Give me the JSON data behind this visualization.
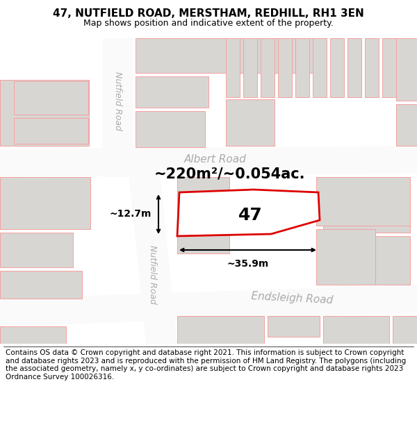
{
  "title": "47, NUTFIELD ROAD, MERSTHAM, REDHILL, RH1 3EN",
  "subtitle": "Map shows position and indicative extent of the property.",
  "footer": "Contains OS data © Crown copyright and database right 2021. This information is subject to Crown copyright and database rights 2023 and is reproduced with the permission of HM Land Registry. The polygons (including the associated geometry, namely x, y co-ordinates) are subject to Crown copyright and database rights 2023 Ordnance Survey 100026316.",
  "map_bg": "#f0eeeb",
  "road_fill": "#fafafa",
  "bld_fill": "#d8d6d3",
  "bld_edge_pink": "#f5a0a0",
  "red": "#dd0000",
  "gray_text": "#aaaaaa",
  "title_fontsize": 11,
  "subtitle_fontsize": 9,
  "footer_fontsize": 7.5,
  "area_label": "~220m²/~0.054ac.",
  "width_label": "~35.9m",
  "height_label": "~12.7m",
  "road_albert": "Albert Road",
  "road_endsleigh": "Endsleigh Road",
  "road_nutfield_top": "Nutfield Road",
  "road_nutfield_bot": "Nutfield Road",
  "label_47": "47"
}
